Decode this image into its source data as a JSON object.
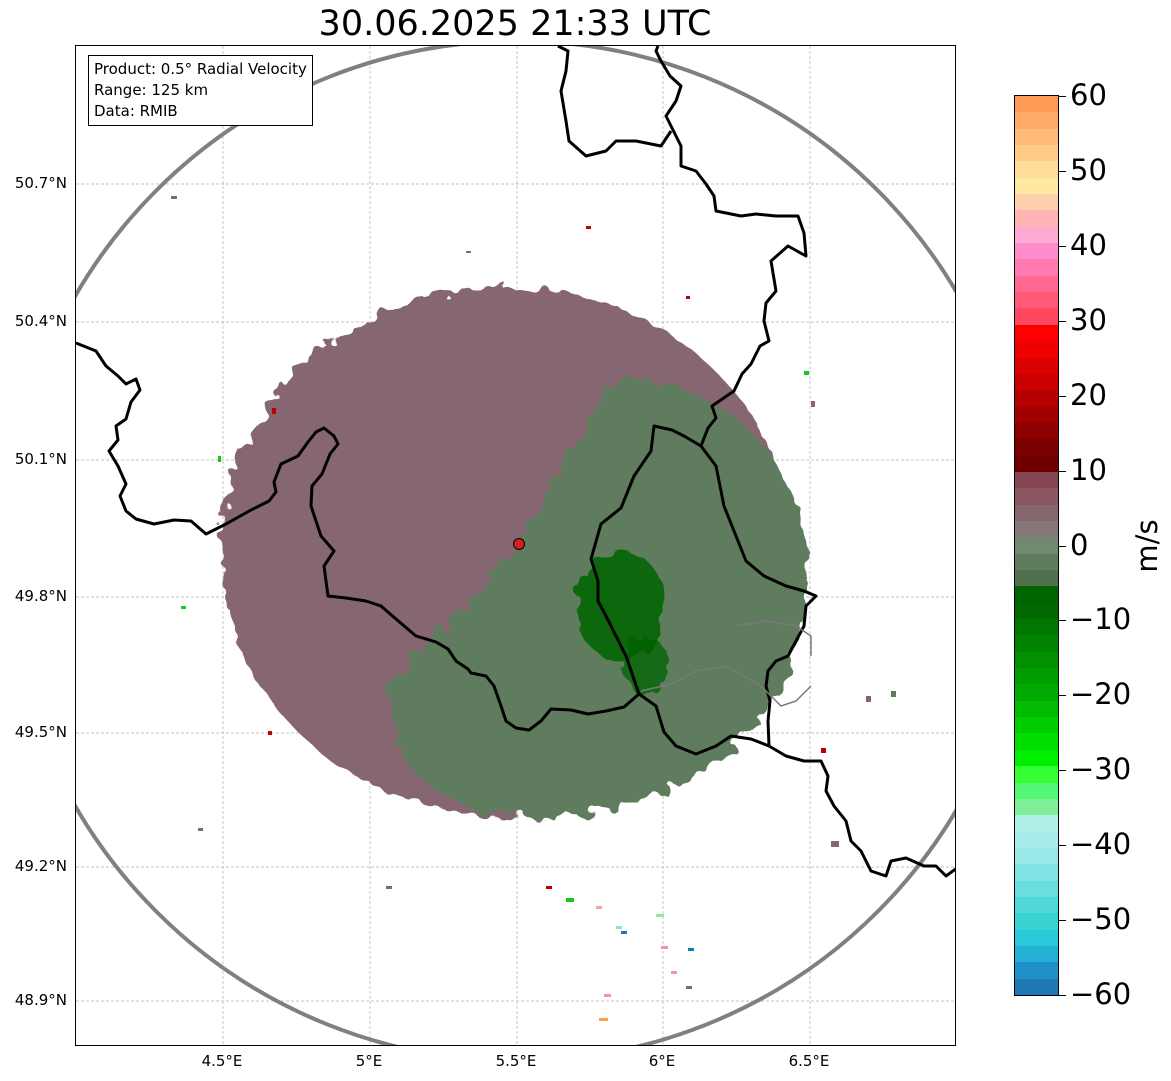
{
  "chart_data": {
    "type": "heatmap",
    "title": "30.06.2025 21:33 UTC",
    "info": [
      "Product: 0.5° Radial Velocity",
      "Range: 125 km",
      "Data: RMIB"
    ],
    "x_ticks": [
      "4.5°E",
      "5°E",
      "5.5°E",
      "6°E",
      "6.5°E"
    ],
    "y_ticks": [
      "50.7°N",
      "50.4°N",
      "50.1°N",
      "49.8°N",
      "49.5°N",
      "49.2°N",
      "48.9°N"
    ],
    "radar_site": {
      "lon": 5.5,
      "lat": 49.91
    },
    "colorbar": {
      "label": "m/s",
      "min": -60,
      "max": 60,
      "ticks": [
        "60",
        "50",
        "40",
        "30",
        "20",
        "10",
        "0",
        "−10",
        "−20",
        "−30",
        "−40",
        "−50",
        "−60"
      ]
    },
    "colors": {
      "receding": "#86666f",
      "approaching": "#5e7c5e",
      "strong_approaching": "#006400",
      "range_ring": "#808080",
      "border": "#000000",
      "site_marker": "#d42020"
    }
  }
}
